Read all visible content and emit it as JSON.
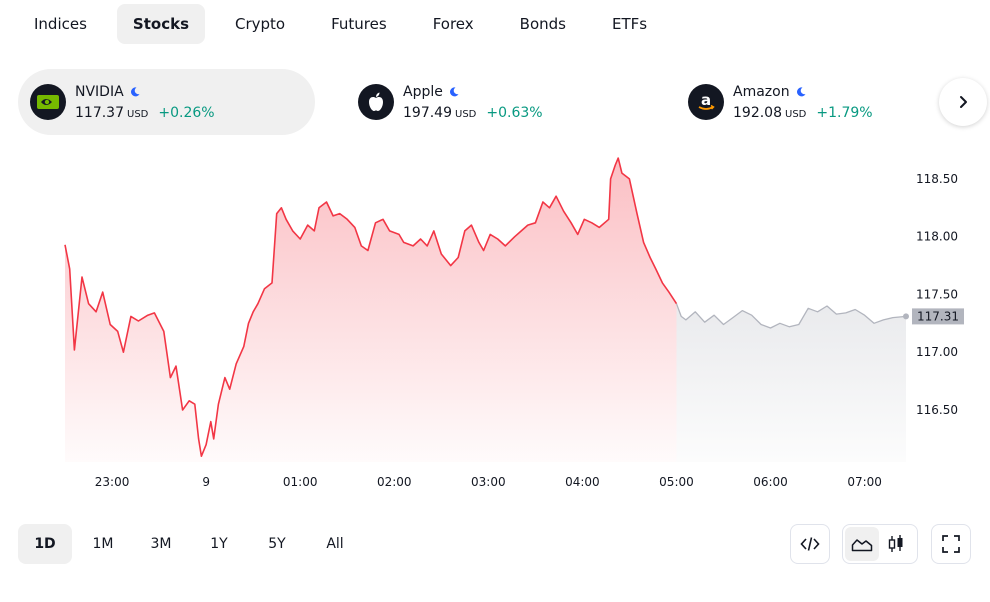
{
  "tabs": [
    {
      "label": "Indices",
      "active": false
    },
    {
      "label": "Stocks",
      "active": true
    },
    {
      "label": "Crypto",
      "active": false
    },
    {
      "label": "Futures",
      "active": false
    },
    {
      "label": "Forex",
      "active": false
    },
    {
      "label": "Bonds",
      "active": false
    },
    {
      "label": "ETFs",
      "active": false
    }
  ],
  "cards": [
    {
      "name": "NVIDIA",
      "price": "117.37",
      "currency": "USD",
      "change": "+0.26%",
      "logo": "nvidia-logo-icon",
      "selected": true
    },
    {
      "name": "Apple",
      "price": "197.49",
      "currency": "USD",
      "change": "+0.63%",
      "logo": "apple-logo-icon",
      "selected": false
    },
    {
      "name": "Amazon",
      "price": "192.08",
      "currency": "USD",
      "change": "+1.79%",
      "logo": "amazon-logo-icon",
      "selected": false
    }
  ],
  "colors": {
    "up": "#089981",
    "line": "#f23645",
    "line_after_hours": "#b2b5be",
    "moon": "#2962ff",
    "active_bg": "#f0f0f0"
  },
  "chart_data": {
    "type": "area",
    "x_tick_labels": [
      "23:00",
      "9",
      "01:00",
      "02:00",
      "03:00",
      "04:00",
      "05:00",
      "06:00",
      "07:00"
    ],
    "y_tick_labels": [
      "118.50",
      "118.00",
      "117.50",
      "117.00",
      "116.50"
    ],
    "ylim": [
      116.05,
      118.75
    ],
    "current_price_label": "117.31",
    "grid": false,
    "series": [
      {
        "session": "regular",
        "color": "#f23645",
        "points": [
          [
            22.5,
            117.93
          ],
          [
            22.55,
            117.72
          ],
          [
            22.6,
            117.02
          ],
          [
            22.68,
            117.65
          ],
          [
            22.75,
            117.42
          ],
          [
            22.83,
            117.35
          ],
          [
            22.9,
            117.52
          ],
          [
            22.98,
            117.24
          ],
          [
            23.06,
            117.18
          ],
          [
            23.12,
            117.0
          ],
          [
            23.2,
            117.31
          ],
          [
            23.28,
            117.27
          ],
          [
            23.38,
            117.32
          ],
          [
            23.45,
            117.34
          ],
          [
            23.55,
            117.18
          ],
          [
            23.62,
            116.78
          ],
          [
            23.68,
            116.88
          ],
          [
            23.75,
            116.5
          ],
          [
            23.82,
            116.58
          ],
          [
            23.88,
            116.55
          ],
          [
            23.92,
            116.25
          ],
          [
            23.95,
            116.1
          ],
          [
            24.0,
            116.2
          ],
          [
            24.05,
            116.4
          ],
          [
            24.08,
            116.25
          ],
          [
            24.13,
            116.55
          ],
          [
            24.2,
            116.78
          ],
          [
            24.25,
            116.68
          ],
          [
            24.32,
            116.9
          ],
          [
            24.4,
            117.05
          ],
          [
            24.45,
            117.25
          ],
          [
            24.5,
            117.35
          ],
          [
            24.55,
            117.42
          ],
          [
            24.62,
            117.55
          ],
          [
            24.7,
            117.6
          ],
          [
            24.75,
            118.2
          ],
          [
            24.8,
            118.25
          ],
          [
            24.85,
            118.15
          ],
          [
            24.92,
            118.05
          ],
          [
            25.0,
            117.98
          ],
          [
            25.08,
            118.1
          ],
          [
            25.15,
            118.05
          ],
          [
            25.2,
            118.25
          ],
          [
            25.28,
            118.3
          ],
          [
            25.35,
            118.18
          ],
          [
            25.42,
            118.2
          ],
          [
            25.5,
            118.15
          ],
          [
            25.58,
            118.08
          ],
          [
            25.65,
            117.92
          ],
          [
            25.72,
            117.88
          ],
          [
            25.8,
            118.12
          ],
          [
            25.88,
            118.15
          ],
          [
            25.95,
            118.05
          ],
          [
            26.05,
            118.02
          ],
          [
            26.1,
            117.95
          ],
          [
            26.2,
            117.92
          ],
          [
            26.28,
            117.98
          ],
          [
            26.35,
            117.92
          ],
          [
            26.42,
            118.05
          ],
          [
            26.5,
            117.85
          ],
          [
            26.6,
            117.75
          ],
          [
            26.68,
            117.82
          ],
          [
            26.75,
            118.05
          ],
          [
            26.82,
            118.1
          ],
          [
            26.9,
            117.95
          ],
          [
            26.95,
            117.88
          ],
          [
            27.02,
            118.02
          ],
          [
            27.1,
            117.98
          ],
          [
            27.18,
            117.92
          ],
          [
            27.28,
            118.0
          ],
          [
            27.35,
            118.05
          ],
          [
            27.42,
            118.1
          ],
          [
            27.5,
            118.12
          ],
          [
            27.58,
            118.3
          ],
          [
            27.65,
            118.25
          ],
          [
            27.72,
            118.35
          ],
          [
            27.8,
            118.22
          ],
          [
            27.88,
            118.12
          ],
          [
            27.95,
            118.02
          ],
          [
            28.02,
            118.15
          ],
          [
            28.1,
            118.12
          ],
          [
            28.18,
            118.08
          ],
          [
            28.28,
            118.15
          ],
          [
            28.3,
            118.5
          ],
          [
            28.35,
            118.62
          ],
          [
            28.38,
            118.68
          ],
          [
            28.42,
            118.55
          ],
          [
            28.5,
            118.5
          ],
          [
            28.58,
            118.2
          ],
          [
            28.65,
            117.95
          ],
          [
            28.72,
            117.82
          ],
          [
            28.78,
            117.72
          ],
          [
            28.85,
            117.6
          ],
          [
            28.92,
            117.52
          ],
          [
            29.0,
            117.42
          ]
        ]
      },
      {
        "session": "after-hours",
        "color": "#b2b5be",
        "points": [
          [
            29.0,
            117.42
          ],
          [
            29.05,
            117.31
          ],
          [
            29.1,
            117.28
          ],
          [
            29.2,
            117.35
          ],
          [
            29.3,
            117.26
          ],
          [
            29.4,
            117.32
          ],
          [
            29.5,
            117.24
          ],
          [
            29.6,
            117.3
          ],
          [
            29.7,
            117.36
          ],
          [
            29.8,
            117.32
          ],
          [
            29.9,
            117.24
          ],
          [
            30.0,
            117.21
          ],
          [
            30.1,
            117.25
          ],
          [
            30.2,
            117.22
          ],
          [
            30.3,
            117.24
          ],
          [
            30.4,
            117.38
          ],
          [
            30.5,
            117.35
          ],
          [
            30.6,
            117.4
          ],
          [
            30.7,
            117.33
          ],
          [
            30.8,
            117.34
          ],
          [
            30.9,
            117.37
          ],
          [
            31.0,
            117.32
          ],
          [
            31.1,
            117.25
          ],
          [
            31.2,
            117.28
          ],
          [
            31.3,
            117.3
          ],
          [
            31.44,
            117.31
          ]
        ]
      }
    ]
  },
  "ranges": [
    {
      "label": "1D",
      "active": true
    },
    {
      "label": "1M",
      "active": false
    },
    {
      "label": "3M",
      "active": false
    },
    {
      "label": "1Y",
      "active": false
    },
    {
      "label": "5Y",
      "active": false
    },
    {
      "label": "All",
      "active": false
    }
  ],
  "tools": {
    "embed": "embed-code-icon",
    "area": "area-chart-icon",
    "candles": "candlestick-icon",
    "fullscreen": "fullscreen-icon"
  }
}
